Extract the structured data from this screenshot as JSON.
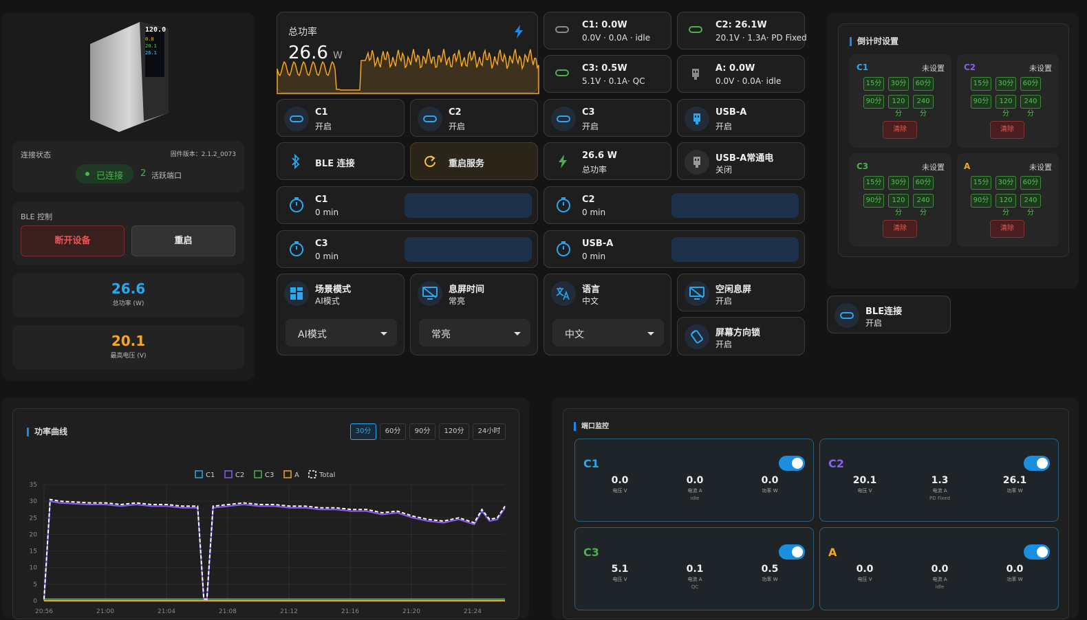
{
  "device": {
    "connection_label": "连接状态",
    "firmware": "固件版本：2.1.2_0073",
    "connected": "已连接",
    "active_count": "2",
    "active_label": "活跃端口",
    "ble_control_title": "BLE 控制",
    "disconnect": "断开设备",
    "restart": "重启",
    "total_power": "26.6",
    "total_power_label": "总功率 (W)",
    "max_voltage": "20.1",
    "max_voltage_label": "最高电压 (V)",
    "screen_text": [
      "120.0",
      "0.0",
      "20.1",
      "26.1"
    ]
  },
  "summary": {
    "title": "总功率",
    "value": "26.6",
    "unit": "W"
  },
  "port_cards": [
    {
      "name": "C1: 0.0W",
      "detail": "0.0V · 0.0A · idle",
      "icon": "usb-c-icon",
      "color": "#8a8a8a"
    },
    {
      "name": "C2: 26.1W",
      "detail": "20.1V · 1.3A· PD Fixed",
      "icon": "usb-c-icon",
      "color": "#4caf50"
    },
    {
      "name": "C3: 0.5W",
      "detail": "5.1V · 0.1A· QC",
      "icon": "usb-c-icon",
      "color": "#4caf50"
    },
    {
      "name": "A: 0.0W",
      "detail": "0.0V · 0.0A· idle",
      "icon": "usb-a-icon",
      "color": "#8a8a8a"
    }
  ],
  "switches": [
    {
      "name": "C1",
      "state": "开启"
    },
    {
      "name": "C2",
      "state": "开启"
    },
    {
      "name": "C3",
      "state": "开启"
    },
    {
      "name": "USB-A",
      "state": "开启"
    }
  ],
  "actions": {
    "ble": "BLE 连接",
    "restart_service": "重启服务",
    "total_value": "26.6 W",
    "total_label": "总功率",
    "usba_always": "USB-A常通电",
    "usba_always_state": "关闭"
  },
  "timers": [
    {
      "name": "C1",
      "value": "0 min"
    },
    {
      "name": "C2",
      "value": "0 min"
    },
    {
      "name": "C3",
      "value": "0 min"
    },
    {
      "name": "USB-A",
      "value": "0 min"
    }
  ],
  "settings": [
    {
      "name": "场景模式",
      "value": "AI模式",
      "select": "AI模式"
    },
    {
      "name": "息屏时间",
      "value": "常亮",
      "select": "常亮"
    },
    {
      "name": "语言",
      "value": "中文",
      "select": "中文"
    }
  ],
  "idle_screen": {
    "name": "空闲息屏",
    "state": "开启"
  },
  "rotation_lock": {
    "name": "屏幕方向锁",
    "state": "开启"
  },
  "ble_card": {
    "name": "BLE连接",
    "state": "开启"
  },
  "countdown": {
    "title": "倒计时设置",
    "not_set": "未设置",
    "clear": "清除",
    "options": [
      "15分",
      "30分",
      "60分",
      "90分",
      "120分",
      "240分"
    ],
    "ports": [
      {
        "name": "C1",
        "color": "#29a8f0"
      },
      {
        "name": "C2",
        "color": "#8b5cf6"
      },
      {
        "name": "C3",
        "color": "#4caf50"
      },
      {
        "name": "A",
        "color": "#f5a623"
      }
    ]
  },
  "power_curve": {
    "title": "功率曲线",
    "ranges": [
      "30分",
      "60分",
      "90分",
      "120分",
      "24小时"
    ],
    "active_range": "30分"
  },
  "chart_data": {
    "type": "line",
    "title": "",
    "xlabel": "",
    "ylabel": "",
    "ylim": [
      0,
      35
    ],
    "yticks": [
      0,
      5,
      10,
      15,
      20,
      25,
      30,
      35
    ],
    "xticks": [
      "20:56",
      "21:00",
      "21:04",
      "21:08",
      "21:12",
      "21:16",
      "21:20",
      "21:24"
    ],
    "xlim": [
      0,
      30
    ],
    "legend": "top-center",
    "grid": true,
    "series": [
      {
        "name": "C1",
        "color": "#29a8f0",
        "values": [
          [
            0,
            0
          ],
          [
            30,
            0
          ]
        ]
      },
      {
        "name": "C2",
        "color": "#8b5cf6",
        "values": [
          [
            0,
            0
          ],
          [
            0.4,
            30
          ],
          [
            1,
            29.5
          ],
          [
            3,
            29
          ],
          [
            4,
            29
          ],
          [
            5,
            28.5
          ],
          [
            6,
            29
          ],
          [
            7,
            28.5
          ],
          [
            8,
            28.5
          ],
          [
            9,
            28
          ],
          [
            10,
            28
          ],
          [
            10.4,
            0
          ],
          [
            10.6,
            0
          ],
          [
            11,
            28
          ],
          [
            12,
            28.5
          ],
          [
            13,
            29
          ],
          [
            14,
            28.5
          ],
          [
            15,
            28.5
          ],
          [
            16,
            28
          ],
          [
            17,
            28
          ],
          [
            18,
            27.5
          ],
          [
            19,
            27.5
          ],
          [
            20,
            27
          ],
          [
            21,
            27
          ],
          [
            22,
            26
          ],
          [
            23,
            26.5
          ],
          [
            24,
            25
          ],
          [
            25,
            24
          ],
          [
            26,
            23.5
          ],
          [
            27,
            24.5
          ],
          [
            28,
            23
          ],
          [
            28.5,
            27
          ],
          [
            29,
            24
          ],
          [
            29.5,
            24.5
          ],
          [
            30,
            28
          ]
        ]
      },
      {
        "name": "C3",
        "color": "#4caf50",
        "values": [
          [
            0,
            0.5
          ],
          [
            30,
            0.5
          ]
        ]
      },
      {
        "name": "A",
        "color": "#f5a623",
        "values": [
          [
            0,
            0
          ],
          [
            30,
            0
          ]
        ]
      },
      {
        "name": "Total",
        "color": "#ffffff",
        "values": [
          [
            0,
            0.5
          ],
          [
            0.4,
            30.5
          ],
          [
            1,
            30
          ],
          [
            3,
            29.5
          ],
          [
            4,
            29.5
          ],
          [
            5,
            29
          ],
          [
            6,
            29.5
          ],
          [
            7,
            29
          ],
          [
            8,
            29
          ],
          [
            9,
            28.5
          ],
          [
            10,
            28.5
          ],
          [
            10.4,
            0.5
          ],
          [
            10.6,
            0.5
          ],
          [
            11,
            28.5
          ],
          [
            12,
            29
          ],
          [
            13,
            29.5
          ],
          [
            14,
            29
          ],
          [
            15,
            29
          ],
          [
            16,
            28.5
          ],
          [
            17,
            28.5
          ],
          [
            18,
            28
          ],
          [
            19,
            28
          ],
          [
            20,
            27.5
          ],
          [
            21,
            27.5
          ],
          [
            22,
            26.5
          ],
          [
            23,
            27
          ],
          [
            24,
            25.5
          ],
          [
            25,
            24.5
          ],
          [
            26,
            24
          ],
          [
            27,
            25
          ],
          [
            28,
            23.5
          ],
          [
            28.5,
            27.5
          ],
          [
            29,
            24.5
          ],
          [
            29.5,
            25
          ],
          [
            30,
            28.5
          ]
        ]
      }
    ]
  },
  "monitor": {
    "title": "端口监控",
    "ports": [
      {
        "name": "C1",
        "color": "#29a8f0",
        "voltage": "0.0",
        "current": "0.0",
        "power": "0.0",
        "note": "idle"
      },
      {
        "name": "C2",
        "color": "#8b5cf6",
        "voltage": "20.1",
        "current": "1.3",
        "power": "26.1",
        "note": "PD Fixed"
      },
      {
        "name": "C3",
        "color": "#4caf50",
        "voltage": "5.1",
        "current": "0.1",
        "power": "0.5",
        "note": "QC"
      },
      {
        "name": "A",
        "color": "#f5a623",
        "voltage": "0.0",
        "current": "0.0",
        "power": "0.0",
        "note": "idle"
      }
    ],
    "voltage_label": "电压 V",
    "current_label": "电流 A",
    "power_label": "功率 W"
  }
}
